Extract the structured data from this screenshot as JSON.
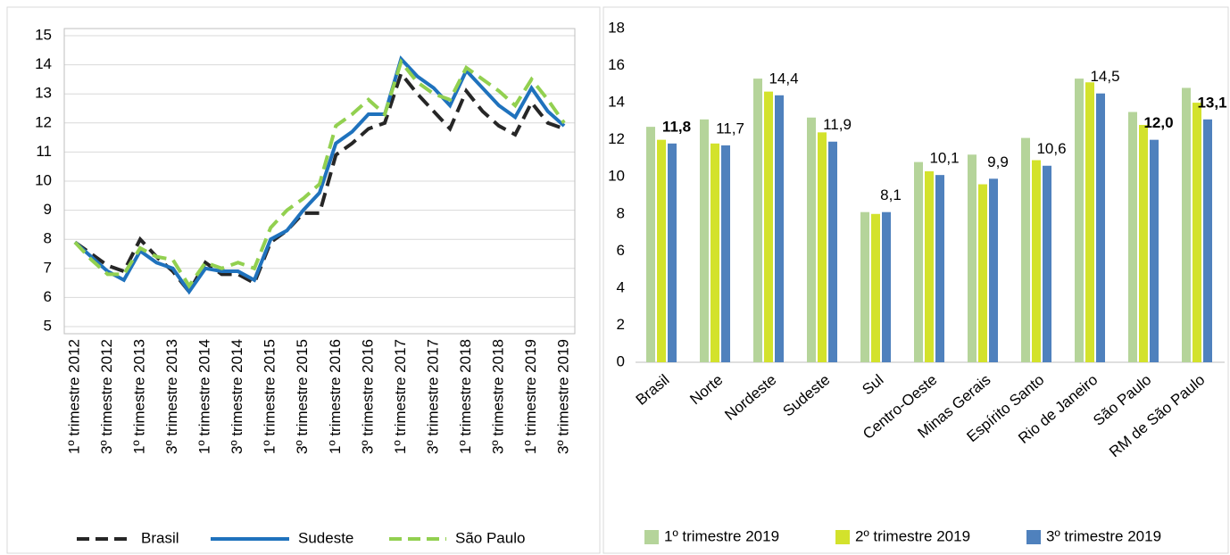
{
  "chart_data": [
    {
      "type": "line",
      "categories": [
        "1º trimestre 2012",
        null,
        "3º trimestre 2012",
        null,
        "1º trimestre 2013",
        null,
        "3º trimestre 2013",
        null,
        "1º trimestre 2014",
        null,
        "3º trimestre 2014",
        null,
        "1º trimestre 2015",
        null,
        "3º trimestre 2015",
        null,
        "1º trimestre 2016",
        null,
        "3º trimestre 2016",
        null,
        "1º trimestre 2017",
        null,
        "3º trimestre 2017",
        null,
        "1º trimestre 2018",
        null,
        "3º trimestre 2018",
        null,
        "1º trimestre 2019",
        null,
        "3º trimestre 2019"
      ],
      "series": [
        {
          "name": "Brasil",
          "color": "#262626",
          "line_style": "dashed",
          "values": [
            7.9,
            7.5,
            7.1,
            6.9,
            8.0,
            7.4,
            6.9,
            6.2,
            7.2,
            6.8,
            6.8,
            6.5,
            7.9,
            8.3,
            8.9,
            8.9,
            10.9,
            11.3,
            11.8,
            12.0,
            13.7,
            13.0,
            12.4,
            11.8,
            13.1,
            12.4,
            11.9,
            11.6,
            12.7,
            12.0,
            11.8
          ]
        },
        {
          "name": "Sudeste",
          "color": "#1f72bd",
          "line_style": "solid",
          "values": [
            7.9,
            7.4,
            6.9,
            6.6,
            7.6,
            7.2,
            7.0,
            6.2,
            7.0,
            6.9,
            6.9,
            6.6,
            8.0,
            8.3,
            9.0,
            9.6,
            11.3,
            11.7,
            12.3,
            12.3,
            14.2,
            13.6,
            13.2,
            12.6,
            13.8,
            13.2,
            12.6,
            12.2,
            13.2,
            12.4,
            11.9
          ]
        },
        {
          "name": "São Paulo",
          "color": "#92d050",
          "line_style": "dashed",
          "values": [
            7.9,
            7.3,
            6.8,
            6.8,
            7.7,
            7.4,
            7.3,
            6.4,
            7.2,
            7.0,
            7.2,
            7.0,
            8.4,
            9.0,
            9.4,
            9.9,
            11.9,
            12.3,
            12.8,
            12.3,
            14.1,
            13.4,
            13.0,
            12.8,
            13.9,
            13.5,
            13.1,
            12.6,
            13.5,
            12.8,
            12.0
          ]
        }
      ],
      "ylim": [
        5,
        15
      ],
      "yticks": [
        5,
        6,
        7,
        8,
        9,
        10,
        11,
        12,
        13,
        14,
        15
      ],
      "grid": true
    },
    {
      "type": "bar",
      "categories": [
        "Brasil",
        "Norte",
        "Nordeste",
        "Sudeste",
        "Sul",
        "Centro-Oeste",
        "Minas Gerais",
        "Espírito Santo",
        "Rio de Janeiro",
        "São Paulo",
        "RM de São Paulo"
      ],
      "series": [
        {
          "name": "1º trimestre 2019",
          "color": "#b5d49a",
          "values": [
            12.7,
            13.1,
            15.3,
            13.2,
            8.1,
            10.8,
            11.2,
            12.1,
            15.3,
            13.5,
            14.8
          ]
        },
        {
          "name": "2º trimestre 2019",
          "color": "#d3e22c",
          "values": [
            12.0,
            11.8,
            14.6,
            12.4,
            8.0,
            10.3,
            9.6,
            10.9,
            15.1,
            12.8,
            14.0
          ]
        },
        {
          "name": "3º trimestre 2019",
          "color": "#4f81bd",
          "values": [
            11.8,
            11.7,
            14.4,
            11.9,
            8.1,
            10.1,
            9.9,
            10.6,
            14.5,
            12.0,
            13.1
          ],
          "value_labels": [
            "11,8",
            "11,7",
            "14,4",
            "11,9",
            "8,1",
            "10,1",
            "9,9",
            "10,6",
            "14,5",
            "12,0",
            "13,1"
          ],
          "value_label_colors": [
            "#262626",
            "#595959",
            "#595959",
            "#595959",
            "#595959",
            "#595959",
            "#595959",
            "#595959",
            "#595959",
            "#ff0000",
            "#ff0000"
          ],
          "value_label_bold": [
            true,
            false,
            false,
            false,
            false,
            false,
            false,
            false,
            false,
            true,
            true
          ]
        }
      ],
      "ylim": [
        0,
        18
      ],
      "yticks": [
        0,
        2,
        4,
        6,
        8,
        10,
        12,
        14,
        16,
        18
      ],
      "grid": false
    }
  ]
}
